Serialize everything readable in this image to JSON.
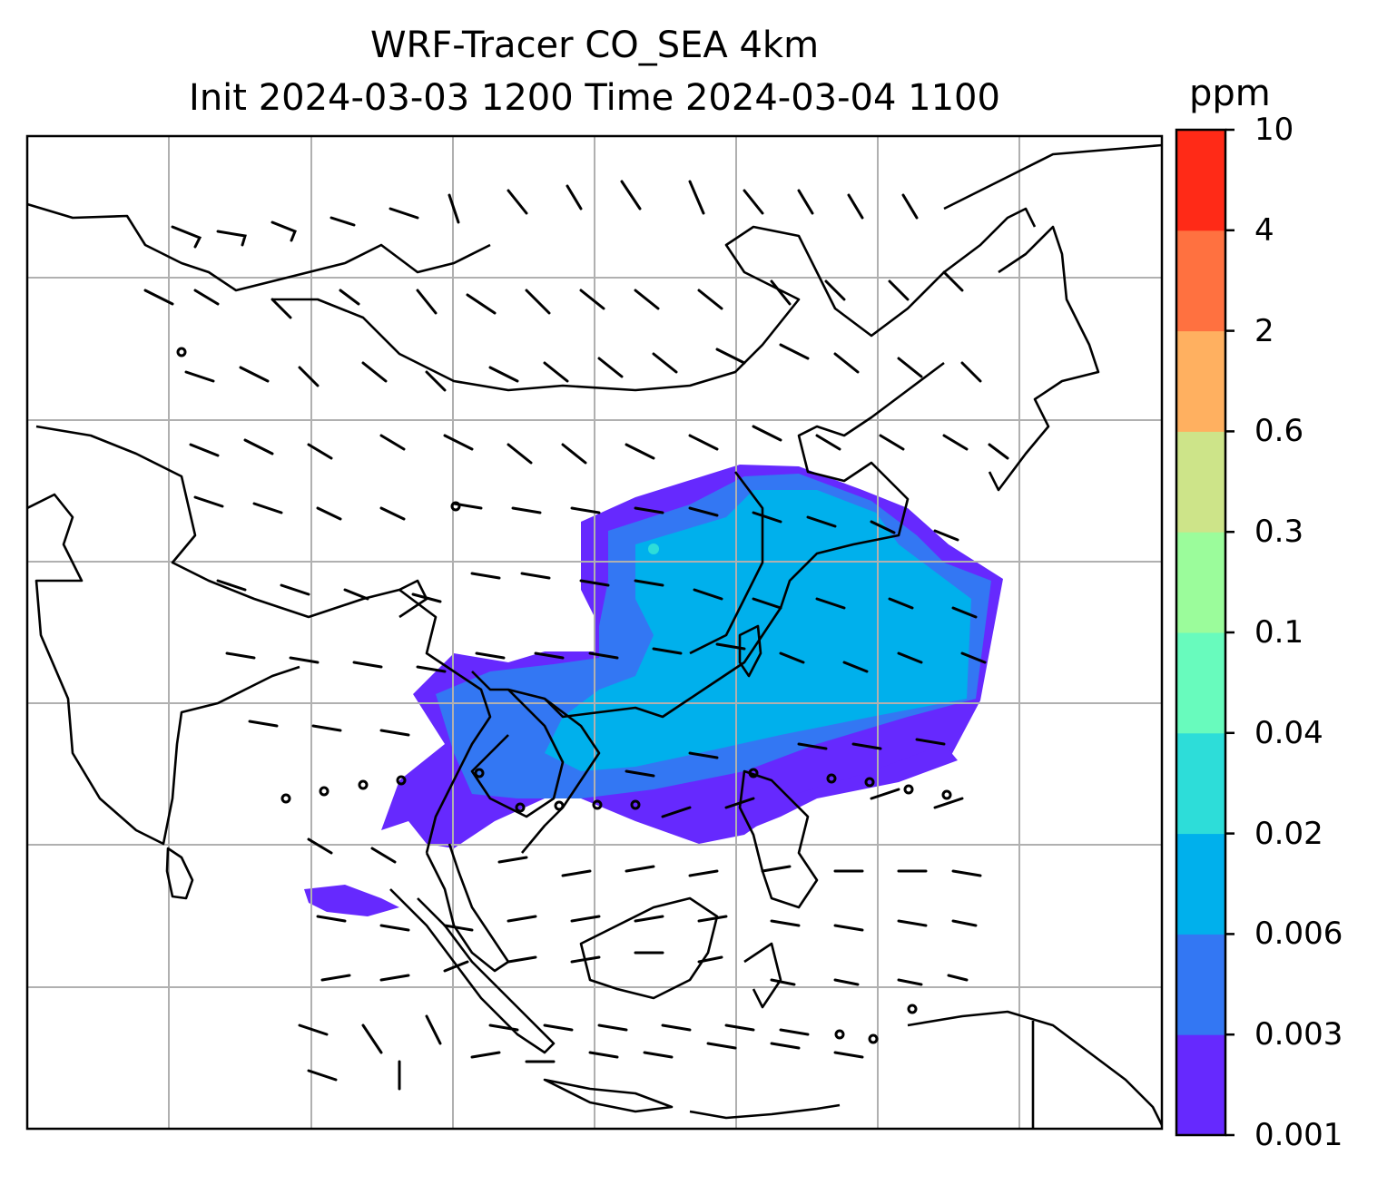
{
  "title": {
    "line1": "WRF-Tracer CO_SEA 4km",
    "line2": "Init 2024-03-03 1200 Time 2024-03-04 1100"
  },
  "colorbar": {
    "unit": "ppm",
    "levels": [
      "0.001",
      "0.003",
      "0.006",
      "0.02",
      "0.04",
      "0.1",
      "0.3",
      "0.6",
      "2",
      "4",
      "10"
    ],
    "colors": [
      "#6629fe",
      "#3377f3",
      "#00b0ec",
      "#2dddd9",
      "#68fbbd",
      "#9bfc9b",
      "#cde489",
      "#ffb060",
      "#ff7140",
      "#ff2a17"
    ]
  },
  "map": {
    "graticule": "on",
    "land_outline_color": "#000000",
    "grid_color": "#b0b0b0"
  }
}
